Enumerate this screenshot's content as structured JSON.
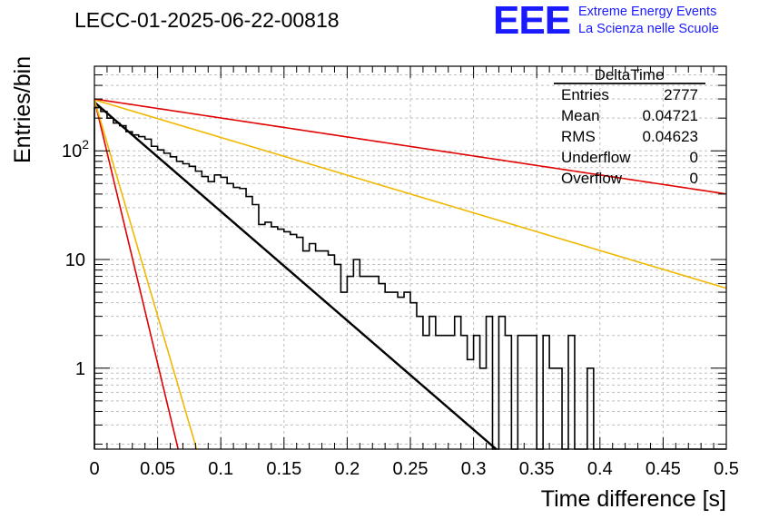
{
  "header": {
    "run_title": "LECC-01-2025-06-22-00818",
    "logo": "EEE",
    "logo_line1": "Extreme Energy Events",
    "logo_line2": "La Scienza nelle Scuole"
  },
  "stats": {
    "name": "DeltaTime",
    "rows": [
      {
        "label": "Entries",
        "value": "2777"
      },
      {
        "label": "Mean",
        "value": "0.04721"
      },
      {
        "label": "RMS",
        "value": "0.04623"
      },
      {
        "label": "Underflow",
        "value": "0"
      },
      {
        "label": "Overflow",
        "value": "0"
      }
    ]
  },
  "chart_data": {
    "type": "line",
    "title": "LECC-01-2025-06-22-00818",
    "xlabel": "Time difference [s]",
    "ylabel": "Entries/bin",
    "xlim": [
      0,
      0.5
    ],
    "ylim": [
      0.18,
      600
    ],
    "yscale": "log",
    "grid": true,
    "x_ticks": [
      "0",
      "0.05",
      "0.1",
      "0.15",
      "0.2",
      "0.25",
      "0.3",
      "0.35",
      "0.4",
      "0.45",
      "0.5"
    ],
    "y_ticks": [
      {
        "value": 1,
        "label": "1"
      },
      {
        "value": 10,
        "label": "10"
      },
      {
        "value": 100,
        "label": "10",
        "exp": "2"
      }
    ],
    "histogram": {
      "bin_width": 0.005,
      "bin_start": 0,
      "values": [
        250,
        230,
        200,
        180,
        170,
        150,
        140,
        135,
        128,
        110,
        102,
        95,
        88,
        80,
        76,
        72,
        65,
        58,
        52,
        60,
        57,
        50,
        46,
        45,
        38,
        32,
        21,
        22,
        20,
        19,
        18,
        17,
        16,
        12,
        14,
        12,
        12,
        11,
        9,
        5,
        7,
        10,
        7,
        7,
        7,
        6,
        5,
        5,
        4.5,
        5,
        4,
        3,
        2,
        3,
        2,
        2,
        2,
        3,
        2,
        1.2,
        2,
        1,
        3,
        0,
        3,
        2,
        0,
        2,
        2,
        2,
        0,
        2,
        1,
        1,
        0,
        2,
        0,
        0,
        1,
        0,
        0,
        0,
        0,
        0,
        0,
        0,
        0,
        0,
        0,
        0,
        0,
        0,
        0,
        0,
        0,
        0,
        0,
        0,
        0,
        0
      ]
    },
    "fits": [
      {
        "color": "#000000",
        "A": 280,
        "tau": 0.04325,
        "width": 2.4
      },
      {
        "color": "#e00000",
        "A": 295,
        "tau": 0.00895,
        "width": 1.6
      },
      {
        "color": "#f0b800",
        "A": 295,
        "tau": 0.01093,
        "width": 1.6
      },
      {
        "color": "#f0b800",
        "A": 295,
        "tau": 0.12523,
        "width": 1.6
      },
      {
        "color": "#e00000",
        "A": 300,
        "tau": 0.24842,
        "width": 1.6
      }
    ]
  }
}
